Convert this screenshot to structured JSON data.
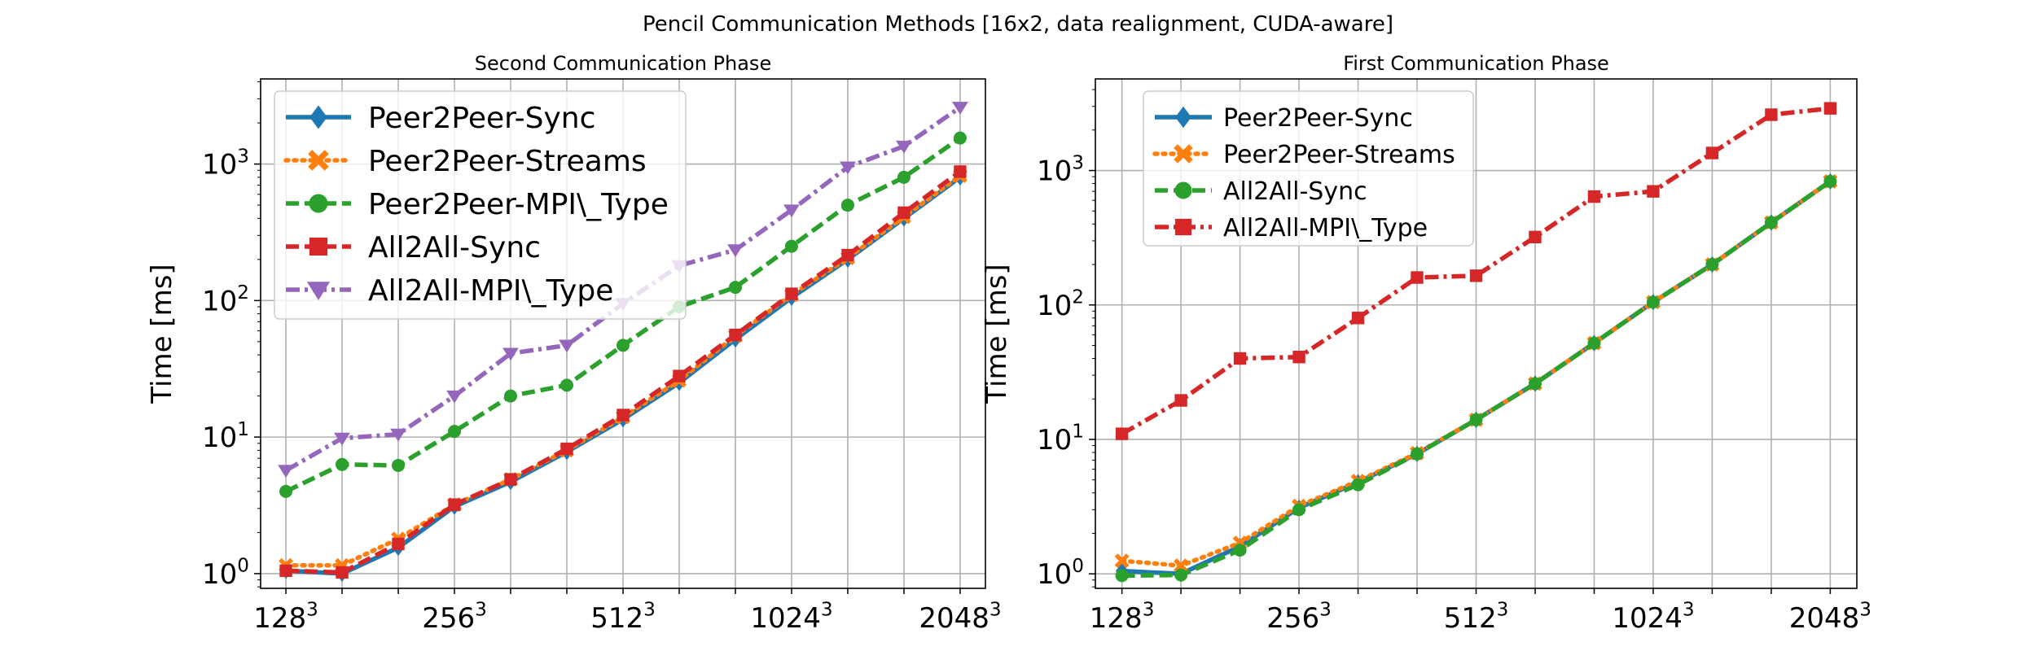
{
  "figure_title": "Pencil Communication Methods [16x2, data realignment, CUDA-aware]",
  "chart_data": [
    {
      "type": "line",
      "title": "Second Communication Phase",
      "xlabel": "",
      "ylabel": "Time [ms]",
      "yscale": "log",
      "ylim": [
        0.78,
        4200
      ],
      "grid": true,
      "legend_position": "top-left",
      "x_tick_labels": [
        {
          "base": "128",
          "exp": "3"
        },
        {
          "base": "256",
          "exp": "3"
        },
        {
          "base": "512",
          "exp": "3"
        },
        {
          "base": "1024",
          "exp": "3"
        },
        {
          "base": "2048",
          "exp": "3"
        }
      ],
      "y_tick_labels": [
        {
          "base": "10",
          "exp": "0",
          "value": 1
        },
        {
          "base": "10",
          "exp": "1",
          "value": 10
        },
        {
          "base": "10",
          "exp": "2",
          "value": 100
        },
        {
          "base": "10",
          "exp": "3",
          "value": 1000
        }
      ],
      "series": [
        {
          "name": "Peer2Peer-Sync",
          "color": "#1f77b4",
          "linestyle": "solid",
          "marker": "diamond",
          "values": [
            1.05,
            1.0,
            1.55,
            3.1,
            4.7,
            7.8,
            13.5,
            25,
            52,
            105,
            200,
            400,
            800
          ]
        },
        {
          "name": "Peer2Peer-Streams",
          "color": "#ff7f0e",
          "linestyle": "dotted",
          "marker": "x-filled",
          "values": [
            1.15,
            1.15,
            1.8,
            3.2,
            4.9,
            8.0,
            14.0,
            26,
            55,
            110,
            205,
            410,
            820
          ]
        },
        {
          "name": "Peer2Peer-MPI\\_Type",
          "color": "#2ca02c",
          "linestyle": "dashed",
          "marker": "circle",
          "values": [
            4.0,
            6.3,
            6.2,
            11,
            20,
            24,
            47,
            90,
            125,
            250,
            500,
            800,
            1550
          ]
        },
        {
          "name": "All2All-Sync",
          "color": "#d62728",
          "linestyle": "dashed",
          "marker": "square",
          "values": [
            1.05,
            1.02,
            1.65,
            3.2,
            4.9,
            8.2,
            14.5,
            28,
            56,
            112,
            215,
            440,
            880
          ]
        },
        {
          "name": "All2All-MPI\\_Type",
          "color": "#9467bd",
          "linestyle": "dashdot",
          "marker": "triangle-down",
          "values": [
            5.7,
            9.8,
            10.5,
            20,
            41,
            47,
            95,
            180,
            235,
            460,
            950,
            1350,
            2600
          ]
        }
      ]
    },
    {
      "type": "line",
      "title": "First Communication Phase",
      "xlabel": "",
      "ylabel": "Time [ms]",
      "yscale": "log",
      "ylim": [
        0.78,
        4800
      ],
      "grid": true,
      "legend_position": "top-left",
      "x_tick_labels": [
        {
          "base": "128",
          "exp": "3"
        },
        {
          "base": "256",
          "exp": "3"
        },
        {
          "base": "512",
          "exp": "3"
        },
        {
          "base": "1024",
          "exp": "3"
        },
        {
          "base": "2048",
          "exp": "3"
        }
      ],
      "y_tick_labels": [
        {
          "base": "10",
          "exp": "0",
          "value": 1
        },
        {
          "base": "10",
          "exp": "1",
          "value": 10
        },
        {
          "base": "10",
          "exp": "2",
          "value": 100
        },
        {
          "base": "10",
          "exp": "3",
          "value": 1000
        }
      ],
      "series": [
        {
          "name": "Peer2Peer-Sync",
          "color": "#1f77b4",
          "linestyle": "solid",
          "marker": "diamond",
          "values": [
            1.05,
            1.0,
            1.6,
            3.1,
            4.8,
            7.8,
            14,
            26,
            52,
            105,
            200,
            410,
            830
          ]
        },
        {
          "name": "Peer2Peer-Streams",
          "color": "#ff7f0e",
          "linestyle": "dotted",
          "marker": "x-filled",
          "values": [
            1.25,
            1.15,
            1.7,
            3.2,
            4.9,
            7.9,
            14,
            26,
            52,
            105,
            200,
            410,
            830
          ]
        },
        {
          "name": "All2All-Sync",
          "color": "#2ca02c",
          "linestyle": "dashed",
          "marker": "circle",
          "values": [
            0.97,
            0.98,
            1.5,
            3.0,
            4.6,
            7.8,
            14,
            26,
            52,
            105,
            200,
            410,
            830
          ]
        },
        {
          "name": "All2All-MPI\\_Type",
          "color": "#d62728",
          "linestyle": "dashdot",
          "marker": "square",
          "values": [
            11,
            19.5,
            40,
            41,
            80,
            160,
            165,
            320,
            640,
            700,
            1350,
            2600,
            2900
          ]
        }
      ]
    }
  ]
}
